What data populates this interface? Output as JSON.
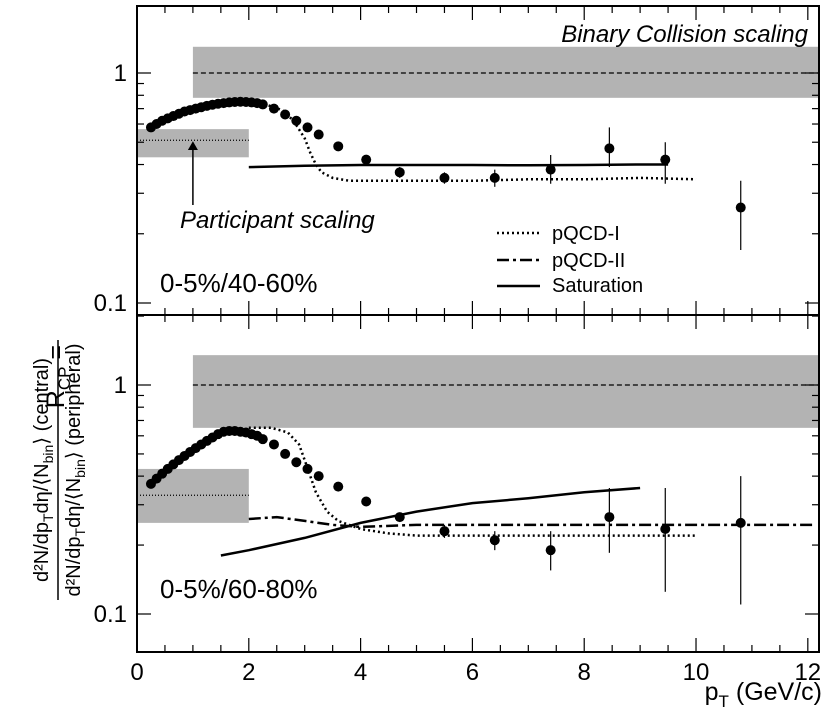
{
  "chart_data": [
    {
      "type": "scatter",
      "panel": "top",
      "label": "0-5%/40-60%",
      "xlim": [
        0,
        12.2
      ],
      "ylim": [
        0.1,
        2.0
      ],
      "yscale": "log",
      "xticks": [
        "0",
        "2",
        "4",
        "6",
        "8",
        "10",
        "12"
      ],
      "yticks": [
        "0.1",
        "1"
      ],
      "binary_band": {
        "xmin": 1.0,
        "xmax": 12.2,
        "ylow": 0.78,
        "yhigh": 1.3,
        "center": 1.0,
        "label": "Binary Collision scaling"
      },
      "participant_band": {
        "xmin": 0.0,
        "xmax": 2.0,
        "ylow": 0.43,
        "yhigh": 0.57,
        "center": 0.51,
        "label": "Participant scaling",
        "arrow_x": 1.0
      },
      "data": {
        "x": [
          0.25,
          0.35,
          0.45,
          0.55,
          0.65,
          0.75,
          0.85,
          0.95,
          1.05,
          1.15,
          1.25,
          1.35,
          1.45,
          1.55,
          1.65,
          1.75,
          1.85,
          1.95,
          2.05,
          2.15,
          2.25,
          2.45,
          2.65,
          2.85,
          3.05,
          3.25,
          3.6,
          4.1,
          4.7,
          5.5,
          6.4,
          7.4,
          8.45,
          9.45,
          10.8
        ],
        "y": [
          0.58,
          0.6,
          0.62,
          0.635,
          0.65,
          0.665,
          0.68,
          0.69,
          0.7,
          0.71,
          0.72,
          0.728,
          0.735,
          0.74,
          0.745,
          0.748,
          0.75,
          0.748,
          0.745,
          0.74,
          0.73,
          0.7,
          0.66,
          0.62,
          0.58,
          0.54,
          0.48,
          0.42,
          0.37,
          0.35,
          0.35,
          0.38,
          0.47,
          0.42,
          0.26
        ],
        "err_lo": [
          0,
          0,
          0,
          0,
          0,
          0,
          0,
          0,
          0,
          0,
          0,
          0,
          0,
          0,
          0,
          0,
          0,
          0,
          0,
          0,
          0,
          0,
          0,
          0,
          0,
          0,
          0,
          0,
          0.02,
          0.02,
          0.03,
          0.05,
          0.08,
          0.09,
          0.09
        ],
        "err_hi": [
          0,
          0,
          0,
          0,
          0,
          0,
          0,
          0,
          0,
          0,
          0,
          0,
          0,
          0,
          0,
          0,
          0,
          0,
          0,
          0,
          0,
          0,
          0,
          0,
          0,
          0,
          0,
          0,
          0.02,
          0.02,
          0.03,
          0.06,
          0.11,
          0.08,
          0.08
        ]
      },
      "series": [
        {
          "name": "pQCD-I",
          "style": "dotted",
          "x": [
            2.0,
            2.3,
            2.6,
            2.8,
            3.0,
            3.1,
            3.2,
            3.3,
            3.5,
            3.8,
            4.5,
            6,
            7,
            8,
            9,
            10
          ],
          "y": [
            0.74,
            0.73,
            0.69,
            0.62,
            0.52,
            0.45,
            0.4,
            0.37,
            0.35,
            0.34,
            0.34,
            0.34,
            0.345,
            0.345,
            0.35,
            0.345
          ]
        },
        {
          "name": "Saturation",
          "style": "solid",
          "x": [
            2.0,
            3.0,
            4.0,
            5.0,
            6.0,
            7.0,
            8.0,
            9.0,
            9.5
          ],
          "y": [
            0.39,
            0.395,
            0.398,
            0.398,
            0.398,
            0.397,
            0.398,
            0.4,
            0.4
          ]
        }
      ],
      "legend": {
        "entries": [
          {
            "label": "pQCD-I",
            "style": "dotted"
          },
          {
            "label": "pQCD-II",
            "style": "dashdot"
          },
          {
            "label": "Saturation",
            "style": "solid"
          }
        ]
      }
    },
    {
      "type": "scatter",
      "panel": "bottom",
      "label": "0-5%/60-80%",
      "xlim": [
        0,
        12.2
      ],
      "ylim": [
        0.085,
        1.7
      ],
      "yscale": "log",
      "xticks": [
        "0",
        "2",
        "4",
        "6",
        "8",
        "10",
        "12"
      ],
      "yticks": [
        "0.1",
        "1"
      ],
      "binary_band": {
        "xmin": 1.0,
        "xmax": 12.2,
        "ylow": 0.65,
        "yhigh": 1.35,
        "center": 1.0
      },
      "participant_band": {
        "xmin": 0.0,
        "xmax": 2.0,
        "ylow": 0.25,
        "yhigh": 0.43,
        "center": 0.33
      },
      "data": {
        "x": [
          0.25,
          0.35,
          0.45,
          0.55,
          0.65,
          0.75,
          0.85,
          0.95,
          1.05,
          1.15,
          1.25,
          1.35,
          1.45,
          1.55,
          1.65,
          1.75,
          1.85,
          1.95,
          2.05,
          2.15,
          2.25,
          2.45,
          2.65,
          2.85,
          3.05,
          3.25,
          3.6,
          4.1,
          4.7,
          5.5,
          6.4,
          7.4,
          8.45,
          9.45,
          10.8
        ],
        "y": [
          0.37,
          0.39,
          0.41,
          0.43,
          0.45,
          0.47,
          0.49,
          0.51,
          0.53,
          0.55,
          0.57,
          0.59,
          0.61,
          0.625,
          0.63,
          0.63,
          0.625,
          0.62,
          0.61,
          0.6,
          0.58,
          0.55,
          0.5,
          0.46,
          0.43,
          0.4,
          0.36,
          0.31,
          0.265,
          0.23,
          0.21,
          0.19,
          0.265,
          0.235,
          0.25
        ],
        "err_lo": [
          0,
          0,
          0,
          0,
          0,
          0,
          0,
          0,
          0,
          0,
          0,
          0,
          0,
          0,
          0,
          0,
          0,
          0,
          0,
          0,
          0,
          0,
          0,
          0,
          0,
          0,
          0,
          0,
          0.01,
          0.015,
          0.02,
          0.035,
          0.08,
          0.11,
          0.14
        ],
        "err_hi": [
          0,
          0,
          0,
          0,
          0,
          0,
          0,
          0,
          0,
          0,
          0,
          0,
          0,
          0,
          0,
          0,
          0,
          0,
          0,
          0,
          0,
          0,
          0,
          0,
          0,
          0,
          0,
          0,
          0.01,
          0.015,
          0.02,
          0.04,
          0.09,
          0.12,
          0.15
        ]
      },
      "series": [
        {
          "name": "pQCD-I",
          "style": "dotted",
          "x": [
            2.0,
            2.4,
            2.7,
            2.9,
            3.0,
            3.1,
            3.2,
            3.4,
            3.6,
            4.0,
            4.5,
            5,
            6,
            7,
            8,
            9,
            10
          ],
          "y": [
            0.65,
            0.65,
            0.62,
            0.55,
            0.47,
            0.4,
            0.34,
            0.28,
            0.255,
            0.235,
            0.225,
            0.22,
            0.22,
            0.22,
            0.22,
            0.22,
            0.22
          ]
        },
        {
          "name": "pQCD-II",
          "style": "dashdot",
          "x": [
            2.0,
            2.5,
            3.0,
            3.5,
            4.0,
            5,
            6,
            7,
            8,
            9,
            10,
            11,
            12.1
          ],
          "y": [
            0.26,
            0.265,
            0.255,
            0.245,
            0.24,
            0.245,
            0.245,
            0.245,
            0.245,
            0.245,
            0.245,
            0.245,
            0.245
          ]
        },
        {
          "name": "Saturation",
          "style": "solid",
          "x": [
            1.5,
            2.0,
            3.0,
            4.0,
            5.0,
            6.0,
            7.0,
            8.0,
            9.0
          ],
          "y": [
            0.18,
            0.19,
            0.215,
            0.25,
            0.28,
            0.305,
            0.32,
            0.34,
            0.355
          ]
        }
      ]
    }
  ],
  "axes": {
    "xlabel": "p",
    "xlabel_sub": "T",
    "xlabel_unit": " (GeV/c)",
    "ylabel_lhs": "R",
    "ylabel_lhs_sub": "CP",
    "ylabel_eq": " =",
    "ylabel_num": "d²N/dp",
    "ylabel_num_sub1": "T",
    "ylabel_num_mid": "dη/⟨N",
    "ylabel_num_sub2": "bin",
    "ylabel_num_end": "⟩ (central)",
    "ylabel_den": "d²N/dp",
    "ylabel_den_sub1": "T",
    "ylabel_den_mid": "dη/⟨N",
    "ylabel_den_sub2": "bin",
    "ylabel_den_end": "⟩ (peripheral)"
  },
  "colors": {
    "band": "#b3b3b3",
    "ink": "#000000",
    "background": "#ffffff"
  }
}
